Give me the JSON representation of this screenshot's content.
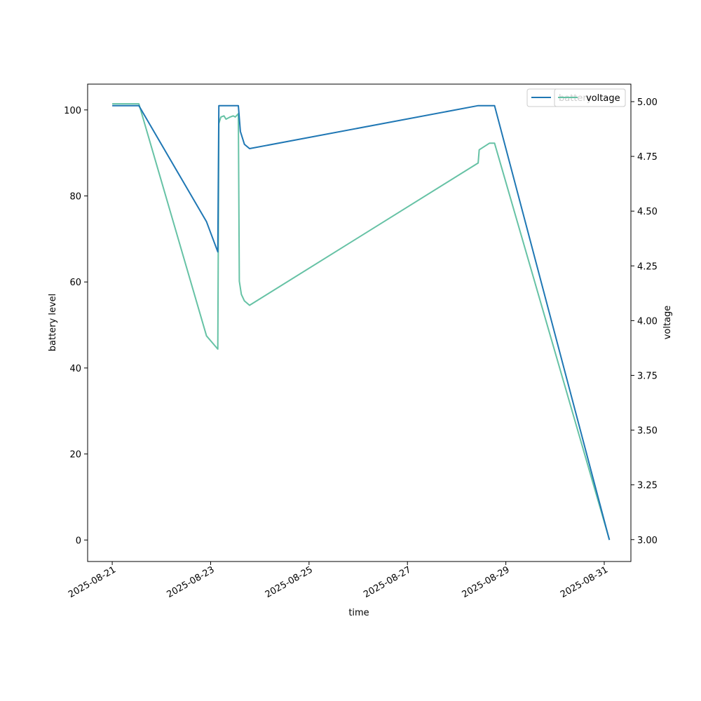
{
  "chart_data": {
    "type": "line",
    "xlabel": "time",
    "ylabel": "battery level",
    "y2label": "voltage",
    "x_ticks": [
      "2025-08-21",
      "2025-08-23",
      "2025-08-25",
      "2025-08-27",
      "2025-08-29",
      "2025-08-31"
    ],
    "y_ticks": [
      0,
      20,
      40,
      60,
      80,
      100
    ],
    "y2_ticks": [
      "3.00",
      "3.25",
      "3.50",
      "3.75",
      "4.00",
      "4.25",
      "4.50",
      "4.75",
      "5.00"
    ],
    "xlim": [
      "2025-08-20 12:00",
      "2025-08-31 13:00"
    ],
    "ylim": [
      -5,
      106
    ],
    "y2lim": [
      2.9,
      5.08
    ],
    "legend_position": "top-right",
    "colors": {
      "battery": "#1f77b4",
      "voltage": "#66c2a5"
    },
    "series": [
      {
        "name": "battery",
        "axis": "left",
        "points": [
          [
            "2025-08-21 00:00",
            101
          ],
          [
            "2025-08-21 13:00",
            101
          ],
          [
            "2025-08-22 22:00",
            74
          ],
          [
            "2025-08-23 03:30",
            67
          ],
          [
            "2025-08-23 04:00",
            101
          ],
          [
            "2025-08-23 13:30",
            101
          ],
          [
            "2025-08-23 14:30",
            95
          ],
          [
            "2025-08-23 16:30",
            92
          ],
          [
            "2025-08-23 19:00",
            91
          ],
          [
            "2025-08-28 10:30",
            101
          ],
          [
            "2025-08-28 18:30",
            101
          ],
          [
            "2025-08-31 02:30",
            0
          ]
        ]
      },
      {
        "name": "voltage",
        "axis": "right",
        "points": [
          [
            "2025-08-21 00:00",
            4.99
          ],
          [
            "2025-08-21 13:00",
            4.99
          ],
          [
            "2025-08-22 22:00",
            3.93
          ],
          [
            "2025-08-23 03:30",
            3.87
          ],
          [
            "2025-08-23 04:00",
            4.9
          ],
          [
            "2025-08-23 05:00",
            4.93
          ],
          [
            "2025-08-23 06:30",
            4.935
          ],
          [
            "2025-08-23 07:30",
            4.92
          ],
          [
            "2025-08-23 09:30",
            4.93
          ],
          [
            "2025-08-23 11:00",
            4.935
          ],
          [
            "2025-08-23 12:00",
            4.93
          ],
          [
            "2025-08-23 13:30",
            4.945
          ],
          [
            "2025-08-23 14:00",
            4.18
          ],
          [
            "2025-08-23 15:00",
            4.12
          ],
          [
            "2025-08-23 16:30",
            4.09
          ],
          [
            "2025-08-23 19:00",
            4.07
          ],
          [
            "2025-08-28 10:30",
            4.72
          ],
          [
            "2025-08-28 11:00",
            4.78
          ],
          [
            "2025-08-28 16:00",
            4.81
          ],
          [
            "2025-08-28 18:30",
            4.81
          ],
          [
            "2025-08-31 02:30",
            3.0
          ]
        ]
      }
    ]
  },
  "legend": {
    "battery_label": "battery",
    "voltage_label": "voltage"
  }
}
